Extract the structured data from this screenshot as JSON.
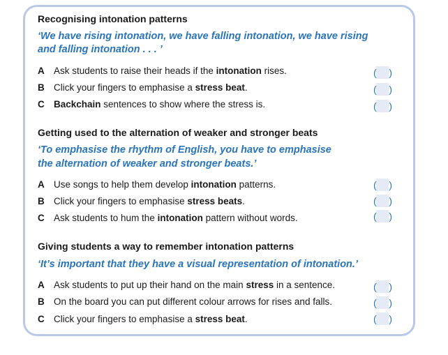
{
  "sections": [
    {
      "heading": "Recognising intonation patterns",
      "quote_line1": "‘We have rising intonation, we have falling intonation, we have rising",
      "quote_line2": "and falling intonation . . . ’",
      "options": [
        {
          "letter": "A",
          "parts": [
            "Ask students to raise their heads if the ",
            "intonation",
            " rises."
          ]
        },
        {
          "letter": "B",
          "parts": [
            "Click your fingers to emphasise a ",
            "stress beat",
            "."
          ]
        },
        {
          "letter": "C",
          "parts": [
            "",
            "Backchain",
            " sentences to show where the stress is."
          ]
        }
      ]
    },
    {
      "heading": "Getting used to the alternation of weaker and stronger beats",
      "quote_line1": "‘To emphasise the rhythm of English, you have to emphasise",
      "quote_line2": "the alternation of weaker and stronger beats.’",
      "options": [
        {
          "letter": "A",
          "parts": [
            "Use songs to help them develop ",
            "intonation",
            " patterns."
          ]
        },
        {
          "letter": "B",
          "parts": [
            "Click your fingers to emphasise ",
            "stress beats",
            "."
          ]
        },
        {
          "letter": "C",
          "parts": [
            "Ask students to hum the ",
            "intonation",
            " pattern without words."
          ]
        }
      ]
    },
    {
      "heading": "Giving students a way to remember intonation patterns",
      "quote_line1": "‘It’s important that they have a visual representation of intonation.’",
      "quote_line2": "",
      "options": [
        {
          "letter": "A",
          "parts": [
            "Ask students to put up their hand on the main ",
            "stress",
            " in a sentence."
          ]
        },
        {
          "letter": "B",
          "parts": [
            "On the board you can put different colour arrows for rises and falls.",
            "",
            ""
          ]
        },
        {
          "letter": "C",
          "parts": [
            "Click your fingers to emphasise a ",
            "stress beat",
            "."
          ]
        }
      ]
    }
  ],
  "answer_box": {
    "open": "(",
    "close": ")",
    "value": ""
  },
  "colors": {
    "border": "#b9c8e6",
    "quote": "#2a74b9",
    "box_fill": "#e4eaf6"
  }
}
